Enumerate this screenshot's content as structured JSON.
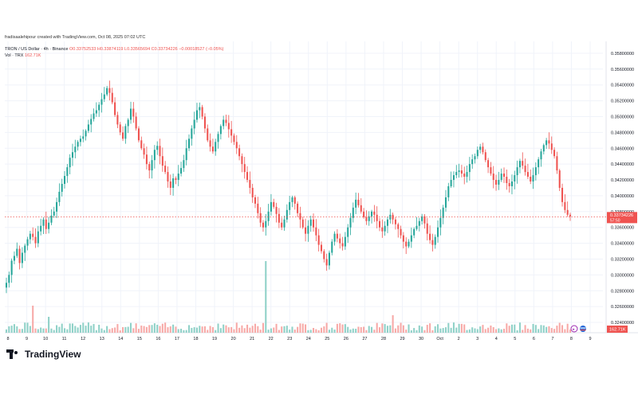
{
  "header": {
    "credit": "fradisaalehipour created with TradingView.com, Oct 08, 2025 07:02 UTC"
  },
  "legend": {
    "symbol": "TRON / US Dollar · 4h · Binance",
    "ohlc": "O0.33752533 H0.33874119 L0.33565694 C0.33734226 −0.00018527 (−0.05%)",
    "volume_label": "Vol · TRX",
    "volume_value": "162.71K"
  },
  "price_badge": {
    "price": "0.33734226",
    "countdown": "57:50"
  },
  "volume_badge": "162.71K",
  "brand": {
    "name": "TradingView"
  },
  "colors": {
    "up": "#26a69a",
    "down": "#ef5350",
    "vol_up": "#8fd1c8",
    "vol_down": "#f7a9a7",
    "last_line": "#ef5350"
  },
  "chart_data": {
    "type": "candlestick",
    "x_ticks": [
      "8",
      "9",
      "10",
      "11",
      "12",
      "13",
      "14",
      "15",
      "16",
      "17",
      "18",
      "19",
      "20",
      "21",
      "22",
      "23",
      "24",
      "25",
      "26",
      "27",
      "28",
      "29",
      "30",
      "Oct",
      "2",
      "3",
      "4",
      "5",
      "6",
      "7",
      "8",
      "9"
    ],
    "y_ticks": [
      "0.35800000",
      "0.35600000",
      "0.35400000",
      "0.35200000",
      "0.35000000",
      "0.34800000",
      "0.34600000",
      "0.34400000",
      "0.34200000",
      "0.34000000",
      "0.33800000",
      "0.33600000",
      "0.33400000",
      "0.33200000",
      "0.33000000",
      "0.32800000",
      "0.32600000",
      "0.32400000"
    ],
    "ylim": [
      0.3235,
      0.3595
    ],
    "last_price": 0.33734226,
    "closes": [
      0.329,
      0.33,
      0.3318,
      0.3324,
      0.3333,
      0.3315,
      0.3328,
      0.3337,
      0.3345,
      0.3352,
      0.3348,
      0.334,
      0.3355,
      0.3362,
      0.337,
      0.3358,
      0.3366,
      0.3375,
      0.338,
      0.3392,
      0.3405,
      0.3415,
      0.3425,
      0.3436,
      0.3448,
      0.3455,
      0.3462,
      0.3468,
      0.3472,
      0.3475,
      0.3482,
      0.349,
      0.3497,
      0.3504,
      0.3508,
      0.3515,
      0.3522,
      0.3528,
      0.3536,
      0.353,
      0.3518,
      0.3502,
      0.349,
      0.348,
      0.3472,
      0.3488,
      0.3496,
      0.351,
      0.35,
      0.3485,
      0.347,
      0.346,
      0.3452,
      0.344,
      0.3432,
      0.3445,
      0.3458,
      0.3463,
      0.345,
      0.3438,
      0.343,
      0.3418,
      0.341,
      0.3422,
      0.342,
      0.3428,
      0.3435,
      0.3445,
      0.346,
      0.3472,
      0.3485,
      0.3496,
      0.3508,
      0.3512,
      0.35,
      0.3485,
      0.347,
      0.3462,
      0.3456,
      0.3468,
      0.3478,
      0.3488,
      0.3496,
      0.3492,
      0.3484,
      0.3476,
      0.3468,
      0.346,
      0.345,
      0.344,
      0.343,
      0.342,
      0.341,
      0.3398,
      0.339,
      0.3378,
      0.3366,
      0.336,
      0.3368,
      0.338,
      0.3392,
      0.3386,
      0.3377,
      0.3366,
      0.336,
      0.337,
      0.3382,
      0.3392,
      0.3398,
      0.339,
      0.3378,
      0.337,
      0.336,
      0.3352,
      0.3362,
      0.337,
      0.336,
      0.335,
      0.3338,
      0.333,
      0.332,
      0.3312,
      0.3328,
      0.3342,
      0.3352,
      0.3346,
      0.334,
      0.3336,
      0.3348,
      0.336,
      0.3372,
      0.3385,
      0.3395,
      0.3388,
      0.338,
      0.3373,
      0.3368,
      0.3374,
      0.338,
      0.3376,
      0.3368,
      0.336,
      0.3355,
      0.3362,
      0.337,
      0.3376,
      0.337,
      0.3364,
      0.3358,
      0.335,
      0.3342,
      0.3336,
      0.3342,
      0.335,
      0.3358,
      0.3362,
      0.3368,
      0.3374,
      0.3365,
      0.3352,
      0.3344,
      0.3338,
      0.3348,
      0.336,
      0.3372,
      0.3385,
      0.3398,
      0.3412,
      0.342,
      0.3426,
      0.343,
      0.3432,
      0.3428,
      0.3424,
      0.343,
      0.344,
      0.3446,
      0.345,
      0.3458,
      0.3462,
      0.3455,
      0.3445,
      0.3436,
      0.3428,
      0.342,
      0.3414,
      0.342,
      0.3428,
      0.3424,
      0.3416,
      0.3412,
      0.3418,
      0.3426,
      0.3436,
      0.3444,
      0.3438,
      0.343,
      0.3424,
      0.3418,
      0.3426,
      0.3436,
      0.3446,
      0.3456,
      0.3464,
      0.347,
      0.3466,
      0.3458,
      0.345,
      0.3432,
      0.341,
      0.3392,
      0.3382,
      0.3376,
      0.3374
    ]
  }
}
